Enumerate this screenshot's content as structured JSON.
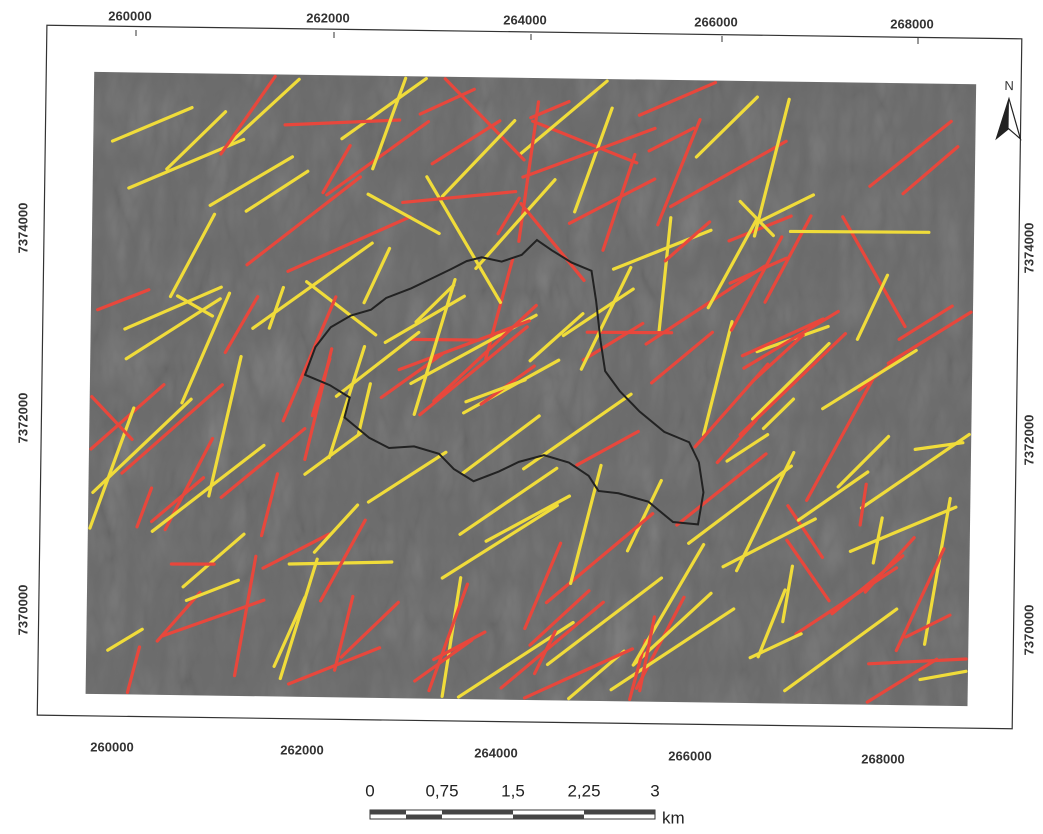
{
  "map": {
    "top_ticks": [
      "260000",
      "262000",
      "264000",
      "266000",
      "268000"
    ],
    "bottom_ticks": [
      "260000",
      "262000",
      "264000",
      "266000",
      "268000"
    ],
    "left_ticks": [
      "7374000",
      "7372000",
      "7370000"
    ],
    "right_ticks": [
      "7374000",
      "7372000",
      "7370000"
    ],
    "north": "N",
    "scale_bar": {
      "labels": [
        "0",
        "0,75",
        "1,5",
        "2,25",
        "3"
      ],
      "unit": "km"
    }
  }
}
